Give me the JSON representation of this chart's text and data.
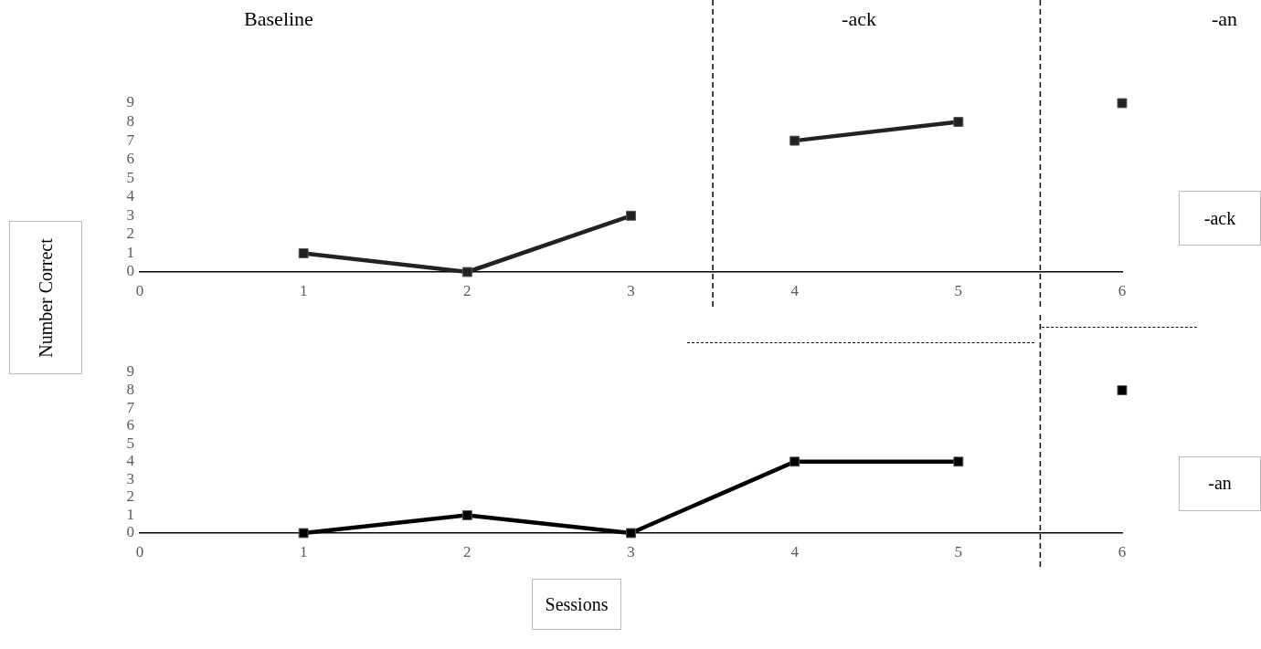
{
  "chart_data": [
    {
      "type": "line",
      "ylabel": "Number Correct",
      "annotations": [
        "Baseline",
        "-ack",
        "-an",
        "-ack"
      ],
      "marker": "square",
      "line_style": "solid",
      "grid": false,
      "legend": false,
      "xlim": [
        0,
        6
      ],
      "xticks": [
        0,
        1,
        2,
        3,
        4,
        5,
        6
      ],
      "ylim": [
        0,
        9
      ],
      "yticks": [
        0,
        1,
        2,
        3,
        4,
        5,
        6,
        7,
        8,
        9
      ],
      "ref_lines": [
        {
          "axis": "x",
          "value": 3.5,
          "line_style": "dashed",
          "color": "#000000"
        },
        {
          "axis": "x",
          "value": 5.5,
          "line_style": "dashed",
          "color": "#000000"
        }
      ],
      "series": [
        {
          "x": [
            1,
            2,
            3
          ],
          "values": [
            1,
            0,
            3
          ],
          "color": "#222222"
        },
        {
          "x": [
            4,
            5
          ],
          "values": [
            7,
            8
          ],
          "color": "#222222"
        },
        {
          "x": [
            6
          ],
          "values": [
            9
          ],
          "color": "#222222"
        }
      ]
    },
    {
      "type": "line",
      "annotations": [
        "-an"
      ],
      "xlabel": "Sessions",
      "marker": "square",
      "line_style": "solid",
      "grid": false,
      "legend": false,
      "xlim": [
        0,
        6
      ],
      "xticks": [
        0,
        1,
        2,
        3,
        4,
        5,
        6
      ],
      "ylim": [
        0,
        9
      ],
      "yticks": [
        0,
        1,
        2,
        3,
        4,
        5,
        6,
        7,
        8,
        9
      ],
      "ref_lines": [
        {
          "axis": "x",
          "value": 5.5,
          "line_style": "dashed",
          "color": "#000000"
        }
      ],
      "series": [
        {
          "x": [
            1,
            2,
            3,
            4,
            5
          ],
          "values": [
            0,
            1,
            0,
            4,
            4
          ],
          "color": "#000000"
        },
        {
          "x": [
            6
          ],
          "values": [
            8
          ],
          "color": "#000000"
        }
      ]
    }
  ]
}
